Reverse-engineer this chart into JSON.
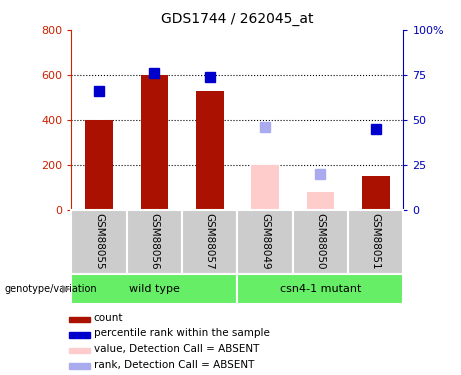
{
  "title": "GDS1744 / 262045_at",
  "samples": [
    "GSM88055",
    "GSM88056",
    "GSM88057",
    "GSM88049",
    "GSM88050",
    "GSM88051"
  ],
  "bar_values": [
    400,
    600,
    530,
    200,
    80,
    150
  ],
  "bar_colors": [
    "#aa1100",
    "#aa1100",
    "#aa1100",
    "#ffcccc",
    "#ffcccc",
    "#aa1100"
  ],
  "rank_pct": [
    66,
    76,
    74,
    46,
    20,
    45
  ],
  "rank_colors": [
    "#0000cc",
    "#0000cc",
    "#0000cc",
    "#aaaaee",
    "#aaaaee",
    "#0000cc"
  ],
  "ylim_left": [
    0,
    800
  ],
  "ylim_right": [
    0,
    100
  ],
  "yticks_left": [
    0,
    200,
    400,
    600,
    800
  ],
  "yticks_right": [
    0,
    25,
    50,
    75,
    100
  ],
  "yticklabels_right": [
    "0",
    "25",
    "50",
    "75",
    "100%"
  ],
  "grid_values": [
    200,
    400,
    600
  ],
  "group_labels": [
    "wild type",
    "csn4-1 mutant"
  ],
  "left_label_color": "#cc2200",
  "right_label_color": "#0000bb",
  "bar_width": 0.5,
  "marker_size": 7,
  "legend_items": [
    {
      "label": "count",
      "color": "#aa1100"
    },
    {
      "label": "percentile rank within the sample",
      "color": "#0000cc"
    },
    {
      "label": "value, Detection Call = ABSENT",
      "color": "#ffcccc"
    },
    {
      "label": "rank, Detection Call = ABSENT",
      "color": "#aaaaee"
    }
  ]
}
